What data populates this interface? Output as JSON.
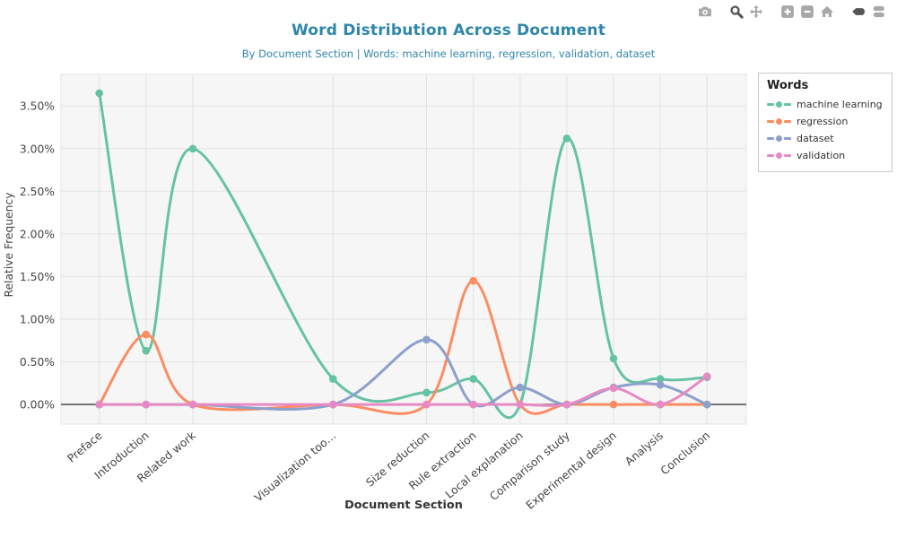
{
  "header": {
    "title": "Word Distribution Across Document",
    "subtitle": "By Document Section | Words: machine learning, regression, validation, dataset",
    "accent_color": "#2e86ab"
  },
  "modebar": {
    "buttons": [
      {
        "icon": "camera-icon",
        "active": false
      },
      {
        "icon": "zoom-icon",
        "active": true
      },
      {
        "icon": "pan-icon",
        "active": false
      },
      {
        "icon": "zoom-in-icon",
        "active": false
      },
      {
        "icon": "zoom-out-icon",
        "active": false
      },
      {
        "icon": "home-icon",
        "active": false
      },
      {
        "icon": "hover-closest-icon",
        "active": true
      },
      {
        "icon": "hover-compare-icon",
        "active": false
      }
    ]
  },
  "legend": {
    "title": "Words",
    "items": [
      {
        "label": "machine learning",
        "color": "#66c2a5"
      },
      {
        "label": "regression",
        "color": "#fc8d62"
      },
      {
        "label": "dataset",
        "color": "#8da0cb"
      },
      {
        "label": "validation",
        "color": "#e78ac3"
      }
    ]
  },
  "chart_data": {
    "type": "line",
    "line_shape": "spline",
    "title": "Word Distribution Across Document",
    "xlabel": "Document Section",
    "ylabel": "Relative Frequency",
    "categories": [
      "Preface",
      "Introduction",
      "Related work",
      "Visualization too…",
      "Size reduction",
      "Rule extraction",
      "Local explanation",
      "Comparison study",
      "Experimental design",
      "Analysis",
      "Conclusion"
    ],
    "x_positions": [
      0,
      1,
      2,
      5,
      7,
      8,
      9,
      10,
      11,
      12,
      13
    ],
    "series": [
      {
        "name": "machine learning",
        "color": "#66c2a5",
        "values": [
          3.65,
          0.63,
          3.0,
          0.3,
          0.14,
          0.3,
          0.0,
          3.12,
          0.54,
          0.3,
          0.32
        ]
      },
      {
        "name": "regression",
        "color": "#fc8d62",
        "values": [
          0.0,
          0.82,
          0.0,
          0.0,
          0.0,
          1.45,
          0.0,
          0.0,
          0.0,
          0.0,
          0.0
        ]
      },
      {
        "name": "dataset",
        "color": "#8da0cb",
        "values": [
          0.0,
          0.0,
          0.0,
          0.0,
          0.76,
          0.0,
          0.2,
          0.0,
          0.2,
          0.23,
          0.0
        ]
      },
      {
        "name": "validation",
        "color": "#e78ac3",
        "values": [
          0.0,
          0.0,
          0.0,
          0.0,
          0.0,
          0.0,
          0.0,
          0.0,
          0.19,
          0.0,
          0.33
        ]
      }
    ],
    "yticks": [
      0,
      0.5,
      1,
      1.5,
      2,
      2.5,
      3,
      3.5
    ],
    "ytick_suffix": "%",
    "ylim": [
      -0.23,
      3.87
    ],
    "xlim": [
      -0.82,
      13.84
    ],
    "grid": true,
    "zeroline": true,
    "legend_position": "right"
  }
}
